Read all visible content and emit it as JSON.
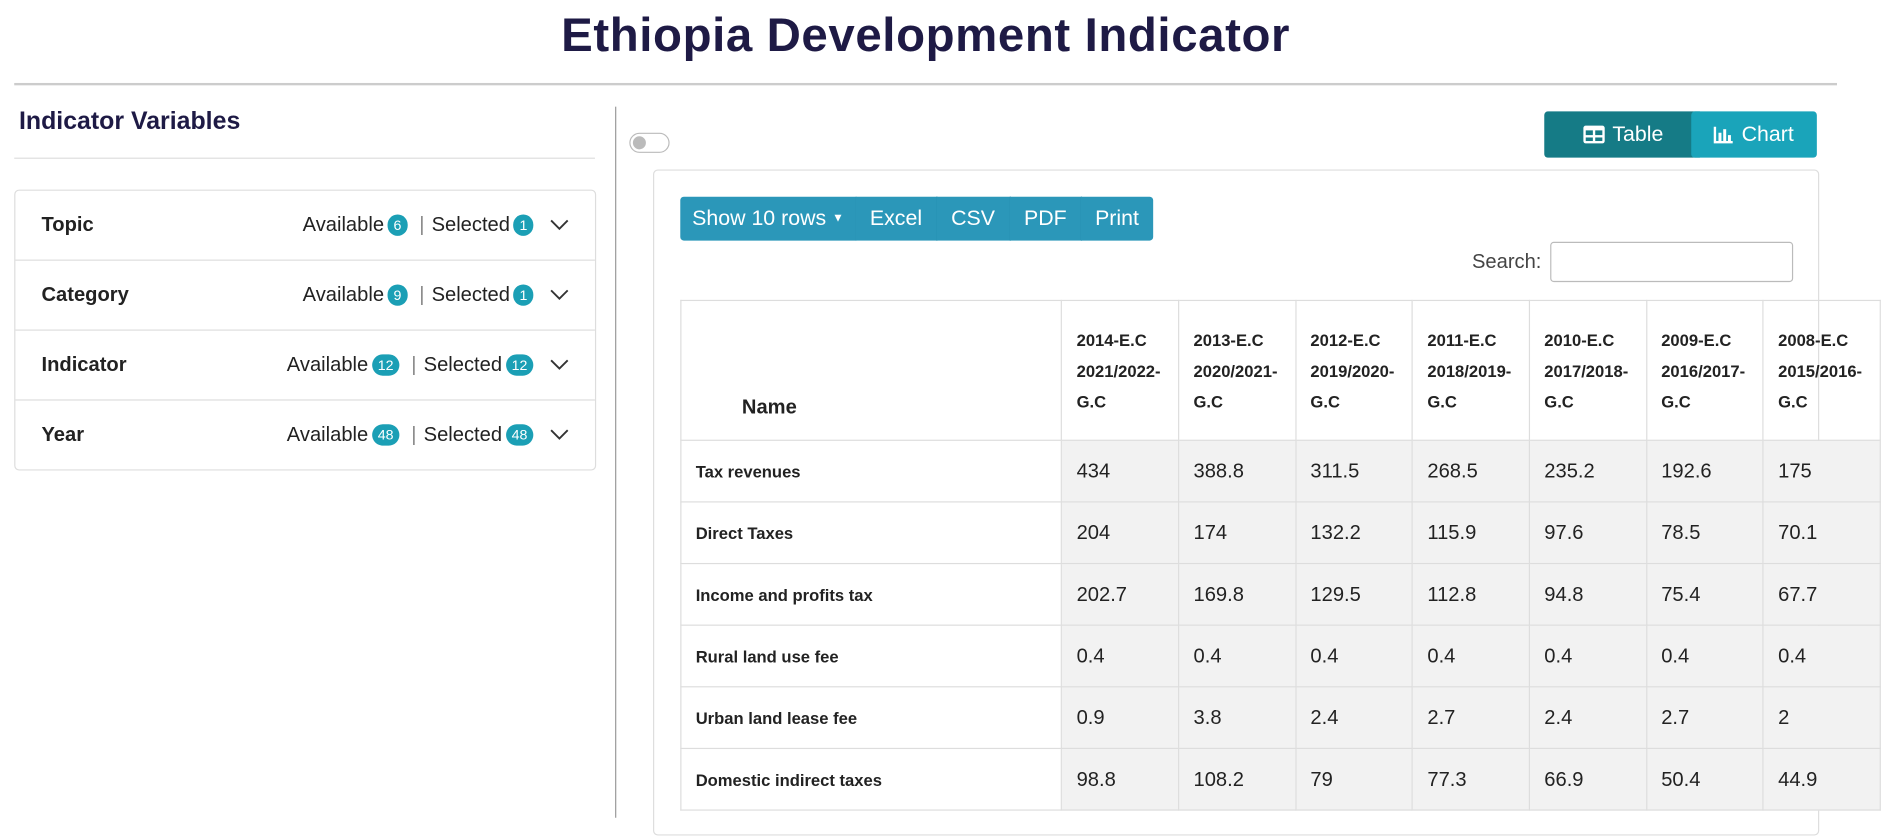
{
  "header": {
    "title": "Ethiopia Development Indicator"
  },
  "sidebar": {
    "title": "Indicator Variables",
    "filters": [
      {
        "label": "Topic",
        "available_label": "Available",
        "available": "6",
        "selected_label": "Selected",
        "selected": "1"
      },
      {
        "label": "Category",
        "available_label": "Available",
        "available": "9",
        "selected_label": "Selected",
        "selected": "1"
      },
      {
        "label": "Indicator",
        "available_label": "Available",
        "available": "12",
        "selected_label": "Selected",
        "selected": "12"
      },
      {
        "label": "Year",
        "available_label": "Available",
        "available": "48",
        "selected_label": "Selected",
        "selected": "48"
      }
    ]
  },
  "view_buttons": [
    "Table",
    "Chart"
  ],
  "toolbar": {
    "buttons": [
      "Show 10 rows",
      "Excel",
      "CSV",
      "PDF",
      "Print"
    ],
    "search_label": "Search:"
  },
  "table": {
    "columns": [
      "Name",
      "2014-E.C 2021/2022-G.C",
      "2013-E.C 2020/2021-G.C",
      "2012-E.C 2019/2020-G.C",
      "2011-E.C 2018/2019-G.C",
      "2010-E.C 2017/2018-G.C",
      "2009-E.C 2016/2017-G.C",
      "2008-E.C 2015/2016-G.C"
    ],
    "rows": [
      [
        "Tax revenues",
        "434",
        "388.8",
        "311.5",
        "268.5",
        "235.2",
        "192.6",
        "175"
      ],
      [
        "Direct Taxes",
        "204",
        "174",
        "132.2",
        "115.9",
        "97.6",
        "78.5",
        "70.1"
      ],
      [
        "Income and profits tax",
        "202.7",
        "169.8",
        "129.5",
        "112.8",
        "94.8",
        "75.4",
        "67.7"
      ],
      [
        "Rural land use fee",
        "0.4",
        "0.4",
        "0.4",
        "0.4",
        "0.4",
        "0.4",
        "0.4"
      ],
      [
        "Urban land lease fee",
        "0.9",
        "3.8",
        "2.4",
        "2.7",
        "2.4",
        "2.7",
        "2"
      ],
      [
        "Domestic indirect taxes",
        "98.8",
        "108.2",
        "79",
        "77.3",
        "66.9",
        "50.4",
        "44.9"
      ]
    ]
  }
}
